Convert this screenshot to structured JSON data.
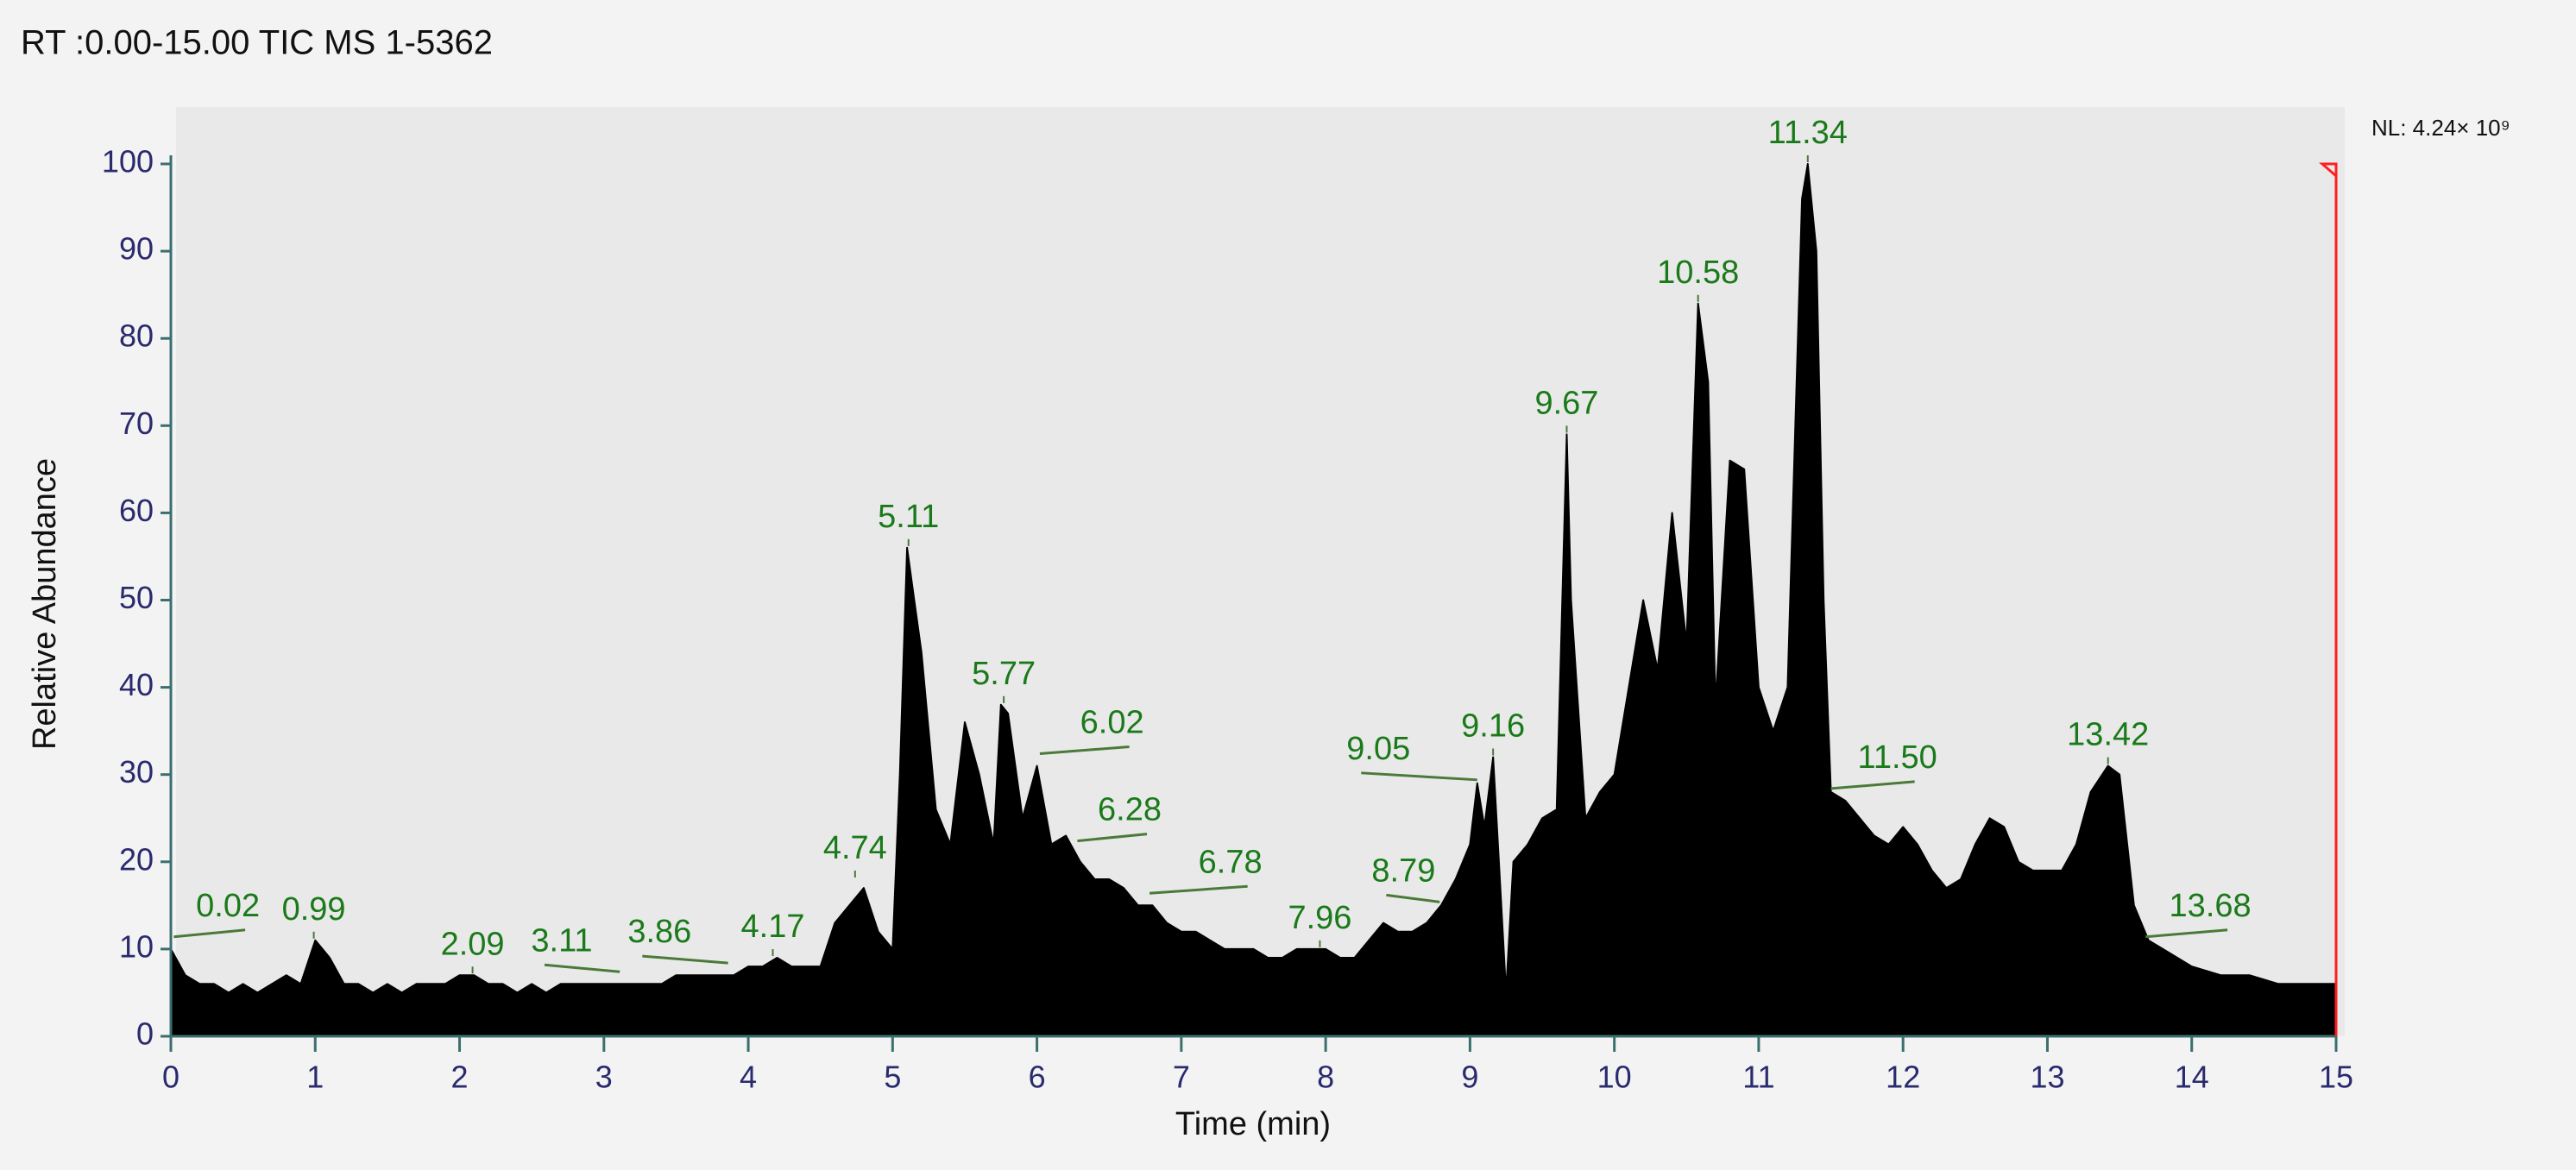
{
  "chart_data": {
    "type": "line",
    "header": "RT :0.00-15.00 TIC  MS  1-5362",
    "normalization": "NL:  4.24× 10⁹",
    "xlabel": "Time (min)",
    "ylabel": "Relative Abundance",
    "x": [
      0,
      0.1,
      0.2,
      0.3,
      0.4,
      0.5,
      0.6,
      0.7,
      0.8,
      0.9,
      1.0,
      1.1,
      1.2,
      1.3,
      1.4,
      1.5,
      1.6,
      1.7,
      1.8,
      1.9,
      2.0,
      2.1,
      2.2,
      2.3,
      2.4,
      2.5,
      2.6,
      2.7,
      2.8,
      2.9,
      3.0,
      3.1,
      3.2,
      3.3,
      3.4,
      3.5,
      3.6,
      3.7,
      3.8,
      3.9,
      4.0,
      4.1,
      4.2,
      4.3,
      4.4,
      4.5,
      4.6,
      4.7,
      4.8,
      4.9,
      5.0,
      5.05,
      5.1,
      5.15,
      5.2,
      5.3,
      5.4,
      5.5,
      5.6,
      5.7,
      5.75,
      5.8,
      5.9,
      6.0,
      6.1,
      6.2,
      6.3,
      6.4,
      6.5,
      6.6,
      6.7,
      6.8,
      6.9,
      7.0,
      7.1,
      7.2,
      7.3,
      7.4,
      7.5,
      7.6,
      7.7,
      7.8,
      7.9,
      8.0,
      8.1,
      8.2,
      8.3,
      8.4,
      8.5,
      8.6,
      8.7,
      8.8,
      8.9,
      9.0,
      9.05,
      9.1,
      9.16,
      9.2,
      9.25,
      9.3,
      9.4,
      9.5,
      9.6,
      9.67,
      9.7,
      9.8,
      9.9,
      10.0,
      10.1,
      10.2,
      10.3,
      10.4,
      10.5,
      10.58,
      10.65,
      10.7,
      10.8,
      10.9,
      11.0,
      11.1,
      11.2,
      11.3,
      11.34,
      11.4,
      11.45,
      11.5,
      11.6,
      11.7,
      11.8,
      11.9,
      12.0,
      12.1,
      12.2,
      12.3,
      12.4,
      12.5,
      12.6,
      12.7,
      12.8,
      12.9,
      13.0,
      13.1,
      13.2,
      13.3,
      13.42,
      13.5,
      13.6,
      13.7,
      13.8,
      13.9,
      14.0,
      14.2,
      14.4,
      14.6,
      14.8,
      15.0
    ],
    "series": [
      {
        "color": "#000000",
        "values": [
          10,
          7,
          6,
          6,
          5,
          6,
          5,
          6,
          7,
          6,
          11,
          9,
          6,
          6,
          5,
          6,
          5,
          6,
          6,
          6,
          7,
          7,
          6,
          6,
          5,
          6,
          5,
          6,
          6,
          6,
          6,
          6,
          6,
          6,
          6,
          7,
          7,
          7,
          7,
          7,
          8,
          8,
          9,
          8,
          8,
          8,
          13,
          15,
          17,
          12,
          10,
          30,
          56,
          50,
          44,
          26,
          22,
          36,
          30,
          22,
          38,
          37,
          25,
          31,
          22,
          23,
          20,
          18,
          18,
          17,
          15,
          15,
          13,
          12,
          12,
          11,
          10,
          10,
          10,
          9,
          9,
          10,
          10,
          10,
          9,
          9,
          11,
          13,
          12,
          12,
          13,
          15,
          18,
          22,
          29,
          24,
          32,
          20,
          5,
          20,
          22,
          25,
          26,
          69,
          50,
          25,
          28,
          30,
          40,
          50,
          42,
          60,
          45,
          84,
          75,
          38,
          66,
          65,
          40,
          35,
          40,
          96,
          100,
          90,
          50,
          28,
          27,
          25,
          23,
          22,
          24,
          22,
          19,
          17,
          18,
          22,
          25,
          24,
          20,
          19,
          19,
          19,
          22,
          28,
          31,
          30,
          15,
          11,
          10,
          9,
          8,
          7,
          7,
          6,
          6,
          6
        ]
      }
    ],
    "annotations": [
      {
        "x": 0.02,
        "y": 11
      },
      {
        "x": 0.99,
        "y": 11
      },
      {
        "x": 2.09,
        "y": 7
      },
      {
        "x": 3.11,
        "y": 7
      },
      {
        "x": 3.86,
        "y": 8
      },
      {
        "x": 4.17,
        "y": 9
      },
      {
        "x": 4.74,
        "y": 18
      },
      {
        "x": 5.11,
        "y": 56
      },
      {
        "x": 5.77,
        "y": 38
      },
      {
        "x": 6.02,
        "y": 32
      },
      {
        "x": 6.28,
        "y": 22
      },
      {
        "x": 6.78,
        "y": 16
      },
      {
        "x": 7.96,
        "y": 10
      },
      {
        "x": 8.79,
        "y": 15
      },
      {
        "x": 9.05,
        "y": 29
      },
      {
        "x": 9.16,
        "y": 32
      },
      {
        "x": 9.67,
        "y": 69
      },
      {
        "x": 10.58,
        "y": 84
      },
      {
        "x": 11.34,
        "y": 100
      },
      {
        "x": 11.5,
        "y": 28,
        "label": "11.50"
      },
      {
        "x": 13.42,
        "y": 31
      },
      {
        "x": 13.68,
        "y": 11
      }
    ],
    "annotation_color": "#1a7a1a",
    "xlim": [
      0,
      15
    ],
    "xticks": [
      0,
      1,
      2,
      3,
      4,
      5,
      6,
      7,
      8,
      9,
      10,
      11,
      12,
      13,
      14,
      15
    ],
    "ylim": [
      0,
      100
    ],
    "yticks": [
      0,
      10,
      20,
      30,
      40,
      50,
      60,
      70,
      80,
      90,
      100
    ],
    "marker_color": "#ff2020"
  }
}
